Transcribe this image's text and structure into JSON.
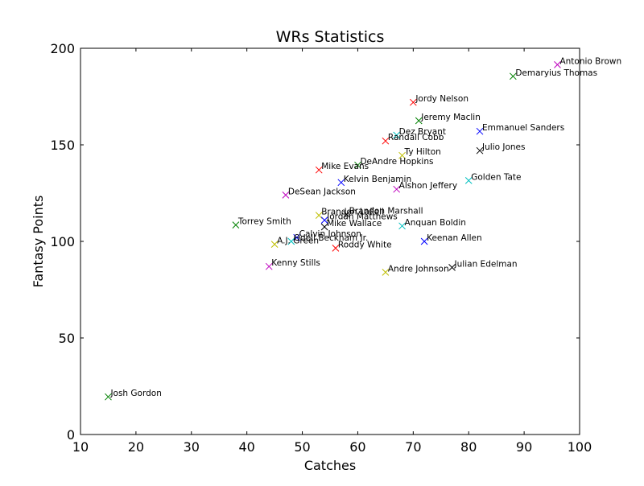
{
  "chart_data": {
    "type": "scatter",
    "title": "WRs Statistics",
    "xlabel": "Catches",
    "ylabel": "Fantasy Points",
    "xlim": [
      10,
      100
    ],
    "ylim": [
      0,
      200
    ],
    "xticks": [
      10,
      20,
      30,
      40,
      50,
      60,
      70,
      80,
      90,
      100
    ],
    "yticks": [
      0,
      50,
      100,
      150,
      200
    ],
    "marker": "x",
    "grid": false,
    "colors": [
      "#0000ff",
      "#008000",
      "#ff0000",
      "#00bfbf",
      "#bf00bf",
      "#bfbf00",
      "#000000"
    ],
    "points": [
      {
        "label": "Antonio Brown",
        "x": 96,
        "y": 191.5,
        "color": "#bf00bf"
      },
      {
        "label": "Demaryius Thomas",
        "x": 88,
        "y": 185.5,
        "color": "#008000"
      },
      {
        "label": "Jordy Nelson",
        "x": 70,
        "y": 172,
        "color": "#ff0000"
      },
      {
        "label": "Jeremy Maclin",
        "x": 71,
        "y": 162.5,
        "color": "#008000"
      },
      {
        "label": "Emmanuel Sanders",
        "x": 82,
        "y": 157,
        "color": "#0000ff"
      },
      {
        "label": "Dez Bryant",
        "x": 67,
        "y": 155,
        "color": "#00bfbf"
      },
      {
        "label": "Randall Cobb",
        "x": 65,
        "y": 152,
        "color": "#ff0000"
      },
      {
        "label": "Julio Jones",
        "x": 82,
        "y": 147,
        "color": "#000000"
      },
      {
        "label": "Ty Hilton",
        "x": 68,
        "y": 144.5,
        "color": "#bfbf00"
      },
      {
        "label": "DeAndre Hopkins",
        "x": 60,
        "y": 139.5,
        "color": "#008000"
      },
      {
        "label": "Mike Evans",
        "x": 53,
        "y": 137,
        "color": "#ff0000"
      },
      {
        "label": "Golden Tate",
        "x": 80,
        "y": 131.5,
        "color": "#00bfbf"
      },
      {
        "label": "Kelvin Benjamin",
        "x": 57,
        "y": 130.5,
        "color": "#0000ff"
      },
      {
        "label": "Alshon Jeffery",
        "x": 67,
        "y": 127,
        "color": "#bf00bf"
      },
      {
        "label": "DeSean Jackson",
        "x": 47,
        "y": 124,
        "color": "#bf00bf"
      },
      {
        "label": "Brandon LaFell",
        "x": 53,
        "y": 113.5,
        "color": "#bfbf00"
      },
      {
        "label": "Brandon Marshall",
        "x": 58,
        "y": 114,
        "color": "#000000"
      },
      {
        "label": "Jordan Matthews",
        "x": 54,
        "y": 111,
        "color": "#0000ff"
      },
      {
        "label": "Torrey Smith",
        "x": 38,
        "y": 108.5,
        "color": "#008000"
      },
      {
        "label": "Mike Wallace",
        "x": 54,
        "y": 107.5,
        "color": "#000000"
      },
      {
        "label": "Anquan Boldin",
        "x": 68,
        "y": 108,
        "color": "#00bfbf"
      },
      {
        "label": "Calvin Johnson",
        "x": 49,
        "y": 102,
        "color": "#0000ff"
      },
      {
        "label": "Odell Beckham Jr.",
        "x": 48,
        "y": 100,
        "color": "#00bfbf"
      },
      {
        "label": "Keenan Allen",
        "x": 72,
        "y": 100,
        "color": "#0000ff"
      },
      {
        "label": "A.J. Green",
        "x": 45,
        "y": 98.5,
        "color": "#bfbf00"
      },
      {
        "label": "Roddy White",
        "x": 56,
        "y": 96.5,
        "color": "#ff0000"
      },
      {
        "label": "Kenny Stills",
        "x": 44,
        "y": 87,
        "color": "#bf00bf"
      },
      {
        "label": "Julian Edelman",
        "x": 77,
        "y": 86.5,
        "color": "#000000"
      },
      {
        "label": "Andre Johnson",
        "x": 65,
        "y": 84,
        "color": "#bfbf00"
      },
      {
        "label": "Josh Gordon",
        "x": 15,
        "y": 19.5,
        "color": "#008000"
      }
    ]
  }
}
